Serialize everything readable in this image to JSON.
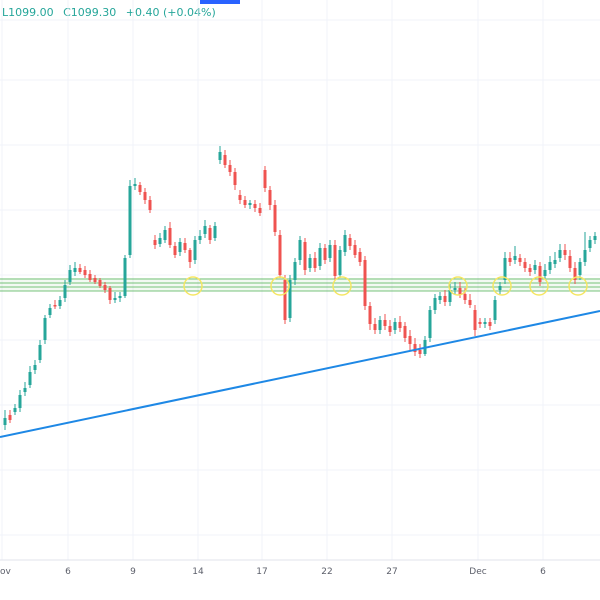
{
  "header": {
    "low": "L1099.00",
    "close": "C1099.30",
    "change": "+0.40 (+0.04%)"
  },
  "colors": {
    "up": "#26a69a",
    "down": "#ef5350",
    "trend": "#1e88e5",
    "zone": "#4caf50",
    "marker": "#f5e663"
  },
  "chart_data": {
    "type": "candlestick",
    "title": "",
    "xlabel": "",
    "ylabel": "",
    "x_ticks": [
      "Nov",
      "6",
      "9",
      "14",
      "17",
      "22",
      "27",
      "Dec",
      "6"
    ],
    "grid": true,
    "support_zone": "horizontal band with 4 lines",
    "trendline": "ascending",
    "annotations": "yellow circles marking touches of the horizontal zone",
    "ohlc": []
  }
}
